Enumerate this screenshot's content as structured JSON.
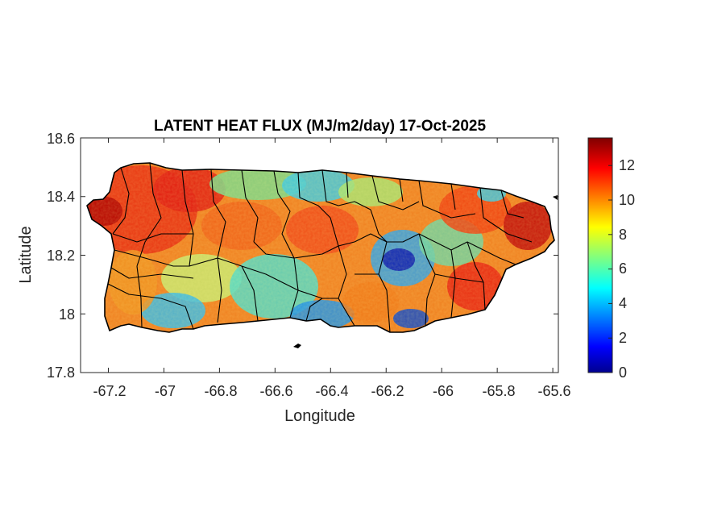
{
  "chart_data": {
    "type": "heatmap",
    "title": "LATENT HEAT FLUX (MJ/m2/day) 17-Oct-2025",
    "xlabel": "Longitude",
    "ylabel": "Latitude",
    "xlim": [
      -67.3,
      -65.58
    ],
    "ylim": [
      17.8,
      18.6
    ],
    "x_ticks": [
      -67.2,
      -67,
      -66.8,
      -66.6,
      -66.4,
      -66.2,
      -66,
      -65.8,
      -65.6
    ],
    "x_tick_labels": [
      "-67.2",
      "-67",
      "-66.8",
      "-66.6",
      "-66.4",
      "-66.2",
      "-66",
      "-65.8",
      "-65.6"
    ],
    "y_ticks": [
      17.8,
      18,
      18.2,
      18.4,
      18.6
    ],
    "y_tick_labels": [
      "17.8",
      "18",
      "18.2",
      "18.4",
      "18.6"
    ],
    "colorbar": {
      "colormap": "jet",
      "range": [
        0,
        13.6
      ],
      "ticks": [
        0,
        2,
        4,
        6,
        8,
        10,
        12
      ],
      "tick_labels": [
        "0",
        "2",
        "4",
        "6",
        "8",
        "10",
        "12"
      ]
    },
    "grid": false,
    "regions": [
      {
        "name": "northwest",
        "approx_value": 11
      },
      {
        "name": "north-central coast",
        "approx_value": 6
      },
      {
        "name": "central interior",
        "approx_value": 9
      },
      {
        "name": "south-central coast",
        "approx_value": 6
      },
      {
        "name": "east-central interior",
        "approx_value": 1.5
      },
      {
        "name": "southeast coast",
        "approx_value": 3
      },
      {
        "name": "northeast",
        "approx_value": 11
      },
      {
        "name": "east coast",
        "approx_value": 12
      }
    ]
  }
}
